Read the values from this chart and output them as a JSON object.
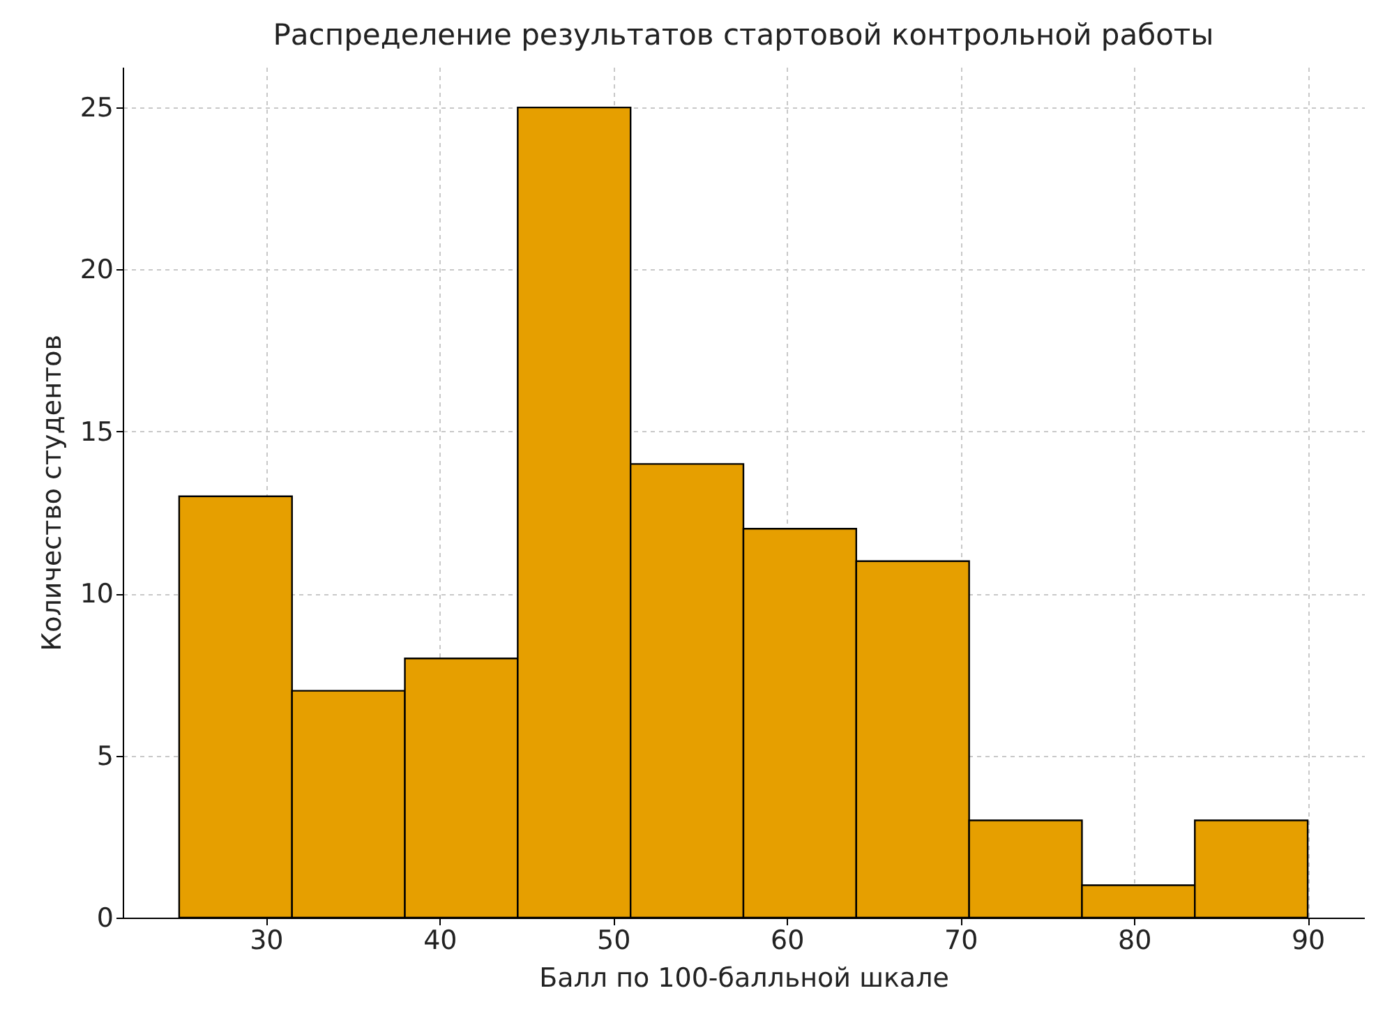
{
  "chart_data": {
    "type": "histogram",
    "title": "Распределение результатов стартовой контрольной работы",
    "xlabel": "Балл по 100-балльной шкале",
    "ylabel": "Количество студентов",
    "bins": [
      25,
      31.5,
      38,
      44.5,
      51,
      57.5,
      64,
      70.5,
      77,
      83.5,
      90
    ],
    "values": [
      13,
      7,
      8,
      25,
      14,
      12,
      11,
      3,
      1,
      3
    ],
    "color": "#e69f00",
    "xlim": [
      21.75,
      93.25
    ],
    "xticks": [
      30,
      40,
      50,
      60,
      70,
      80,
      90
    ],
    "ylim": [
      0,
      26.25
    ],
    "yticks": [
      0,
      5,
      10,
      15,
      20,
      25
    ],
    "grid": true
  }
}
